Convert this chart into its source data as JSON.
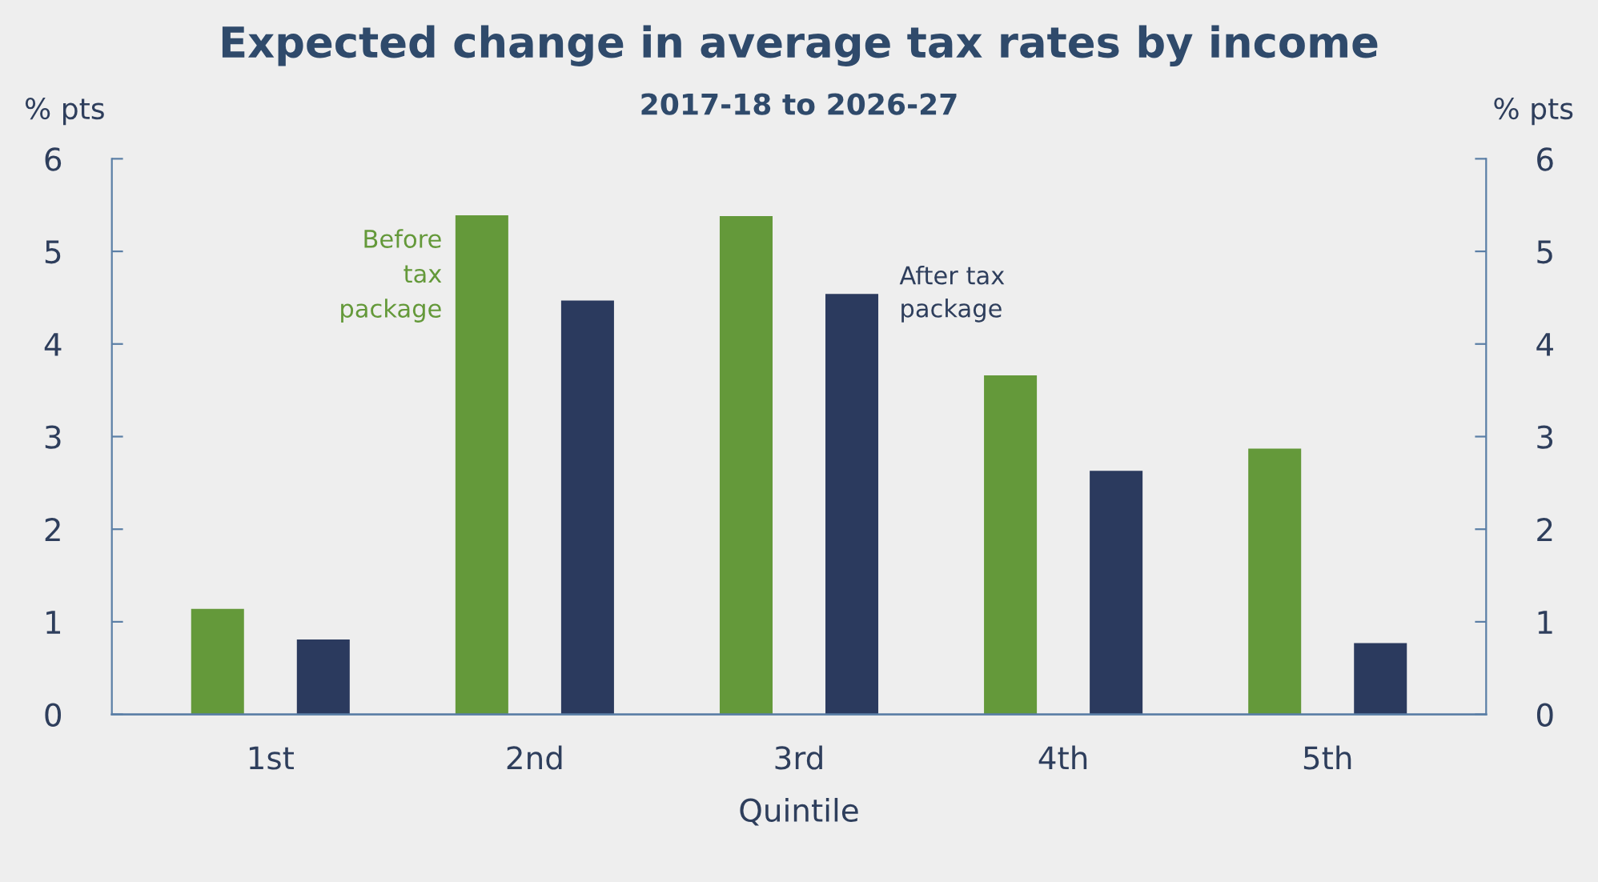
{
  "chart_data": {
    "type": "bar",
    "title": "Expected change in average tax rates by income",
    "subtitle": "2017-18 to 2026-27",
    "xlabel": "Quintile",
    "ylabel": "% pts",
    "y2label": "% pts",
    "categories": [
      "1st",
      "2nd",
      "3rd",
      "4th",
      "5th"
    ],
    "series": [
      {
        "name": "Before tax package",
        "color": "#64993a",
        "values": [
          1.14,
          5.39,
          5.38,
          3.66,
          2.87
        ]
      },
      {
        "name": "After tax package",
        "color": "#2b3a5e",
        "values": [
          0.81,
          4.47,
          4.54,
          2.63,
          0.77
        ]
      }
    ],
    "ylim": [
      0,
      6
    ],
    "yticks": [
      0,
      1,
      2,
      3,
      4,
      5,
      6
    ],
    "y2lim": [
      0,
      6
    ],
    "y2ticks": [
      0,
      1,
      2,
      3,
      4,
      5,
      6
    ],
    "grid": false,
    "legend": false
  }
}
